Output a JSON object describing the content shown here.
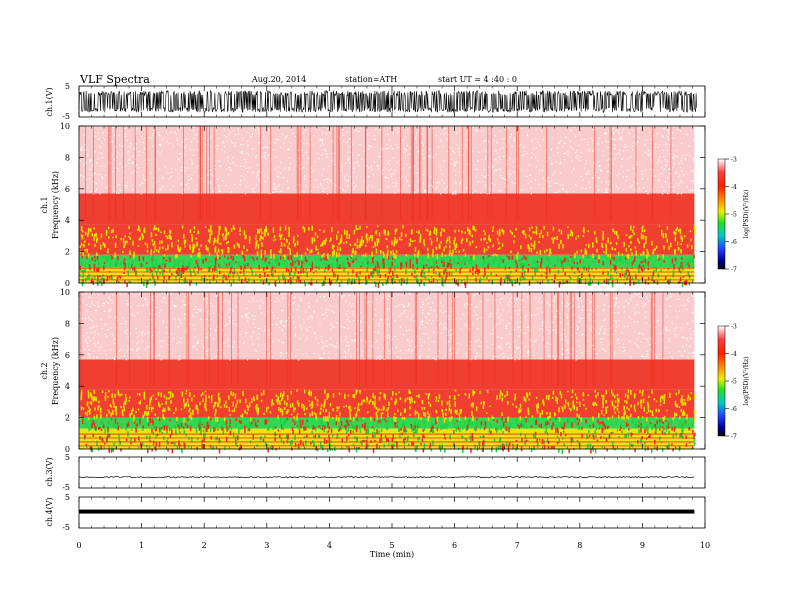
{
  "header": {
    "title": "VLF  Spectra",
    "date": "Aug.20, 2014",
    "station": "station=ATH",
    "start": "start  UT  =   4  :40 : 0"
  },
  "chart_data": [
    {
      "type": "line",
      "panel": "ch1-waveform",
      "ylabel": "ch.1(V)",
      "ylim": [
        -5,
        5
      ],
      "yticks": [
        "5",
        "-5"
      ],
      "description_color": "#000000",
      "amplitude_range": [
        -3.5,
        3.5
      ]
    },
    {
      "type": "heatmap",
      "panel": "ch1-spectrogram",
      "ylabel_lines": [
        "ch.1",
        "Frequency  (kHz)"
      ],
      "ylim": [
        0,
        10
      ],
      "yticks": [
        "10",
        "8",
        "6",
        "4",
        "2",
        "0"
      ],
      "bands_khz": [
        {
          "from": 0.0,
          "to": 1.0,
          "level": "green-yellow"
        },
        {
          "from": 1.0,
          "to": 1.8,
          "level": "green"
        },
        {
          "from": 1.8,
          "to": 3.7,
          "level": "red-yellow"
        },
        {
          "from": 3.7,
          "to": 5.7,
          "level": "red"
        },
        {
          "from": 5.7,
          "to": 10.0,
          "level": "light-red"
        }
      ],
      "colorbar": {
        "label": "log(PSD)(V²/Hz)",
        "ticks": [
          "-3",
          "-4",
          "-5",
          "-6",
          "-7"
        ],
        "range": [
          -7,
          -3
        ]
      }
    },
    {
      "type": "heatmap",
      "panel": "ch2-spectrogram",
      "ylabel_lines": [
        "ch.2",
        "Frequency  (kHz)"
      ],
      "ylim": [
        0,
        10
      ],
      "yticks": [
        "10",
        "8",
        "6",
        "4",
        "2",
        "0"
      ],
      "bands_khz": [
        {
          "from": 0.0,
          "to": 1.3,
          "level": "green-yellow"
        },
        {
          "from": 1.3,
          "to": 2.0,
          "level": "green"
        },
        {
          "from": 2.0,
          "to": 3.8,
          "level": "red-yellow"
        },
        {
          "from": 3.8,
          "to": 5.7,
          "level": "red"
        },
        {
          "from": 5.7,
          "to": 10.0,
          "level": "light-red"
        }
      ],
      "colorbar": {
        "label": "log(PSD)(V²/Hz)",
        "ticks": [
          "-3",
          "-4",
          "-5",
          "-6",
          "-7"
        ],
        "range": [
          -7,
          -3
        ]
      }
    },
    {
      "type": "line",
      "panel": "ch3-waveform",
      "ylabel": "ch.3(V)",
      "ylim": [
        -5,
        5
      ],
      "yticks": [
        "5",
        "-5"
      ],
      "level": -1.5
    },
    {
      "type": "line",
      "panel": "ch4-waveform",
      "ylabel": "ch.4(V)",
      "ylim": [
        -5,
        5
      ],
      "yticks": [
        "5",
        "-5"
      ],
      "level": 0.3
    }
  ],
  "xaxis": {
    "label": "Time  (min)",
    "xlim": [
      0,
      10
    ],
    "ticks": [
      "0",
      "1",
      "2",
      "3",
      "4",
      "5",
      "6",
      "7",
      "8",
      "9",
      "10"
    ],
    "data_end": 9.83
  },
  "colors": {
    "light_red": "#f6a0a0",
    "red": "#ee2a1a",
    "yellow": "#e8e000",
    "green": "#20d040",
    "colorbar_stops": [
      "#ffffff",
      "#ff2020",
      "#ffa000",
      "#f0f000",
      "#20e020",
      "#00c0c0",
      "#2040ff",
      "#0000a0",
      "#000000"
    ]
  }
}
